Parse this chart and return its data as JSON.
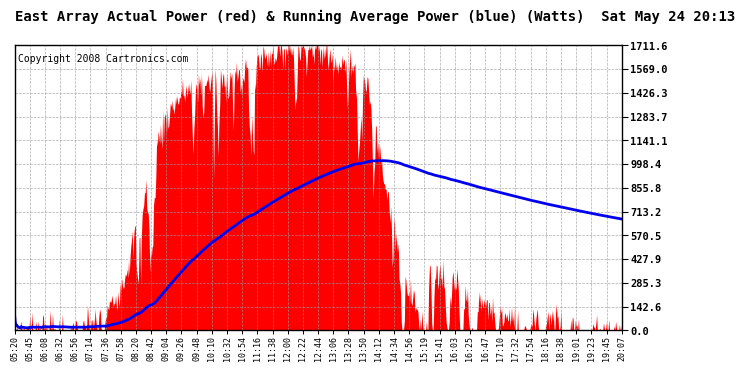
{
  "title": "East Array Actual Power (red) & Running Average Power (blue) (Watts)  Sat May 24 20:13",
  "copyright": "Copyright 2008 Cartronics.com",
  "yticks": [
    0.0,
    142.6,
    285.3,
    427.9,
    570.5,
    713.2,
    855.8,
    998.4,
    1141.1,
    1283.7,
    1426.3,
    1569.0,
    1711.6
  ],
  "xtick_labels": [
    "05:20",
    "05:45",
    "06:08",
    "06:32",
    "06:56",
    "07:14",
    "07:36",
    "07:58",
    "08:20",
    "08:42",
    "09:04",
    "09:26",
    "09:48",
    "10:10",
    "10:32",
    "10:54",
    "11:16",
    "11:38",
    "12:00",
    "12:22",
    "12:44",
    "13:06",
    "13:28",
    "13:50",
    "14:12",
    "14:34",
    "14:56",
    "15:19",
    "15:41",
    "16:03",
    "16:25",
    "16:47",
    "17:10",
    "17:32",
    "17:54",
    "18:16",
    "18:38",
    "19:01",
    "19:23",
    "19:45",
    "20:07"
  ],
  "ymax": 1711.6,
  "ymin": 0.0,
  "actual_color": "#FF0000",
  "avg_color": "#0000EE",
  "bg_color": "#FFFFFF",
  "grid_color": "#999999",
  "title_fontsize": 10,
  "copyright_fontsize": 7,
  "n_points": 800
}
